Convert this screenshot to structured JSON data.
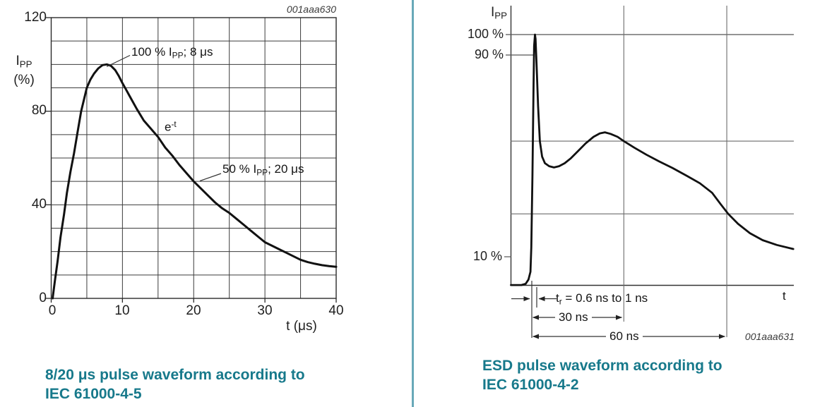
{
  "page": {
    "background": "#ffffff",
    "divider_color": "#68a8b8",
    "caption_color": "#17798b",
    "curve_color": "#111111"
  },
  "left": {
    "figure_id": "001aaa630",
    "caption_line1": "8/20 μs pulse waveform according to",
    "caption_line2": "IEC 61000-4-5",
    "axis": {
      "y_label_main": "I",
      "y_label_sub": "PP",
      "y_label_unit": "(%)",
      "x_label": "t (μs)",
      "y_ticks": [
        "120",
        "80",
        "40",
        "0"
      ],
      "x_ticks": [
        "0",
        "10",
        "20",
        "30",
        "40"
      ]
    },
    "annotations": {
      "peak_prefix": "100 % I",
      "peak_sub": "PP",
      "peak_suffix": "; 8 μs",
      "exp_base": "e",
      "exp_sup": "-t",
      "half_prefix": "50 % I",
      "half_sub": "PP",
      "half_suffix": "; 20 μs"
    }
  },
  "right": {
    "figure_id": "001aaa631",
    "caption_line1": "ESD pulse waveform according to",
    "caption_line2": "IEC 61000-4-2",
    "axis": {
      "y_label_main": "I",
      "y_label_sub": "PP",
      "x_label": "t",
      "y_ticks": [
        "100 %",
        "90 %",
        "10 %"
      ]
    },
    "annotations": {
      "tr_main": "t",
      "tr_sub": "r",
      "tr_rest": " = 0.6 ns to 1 ns",
      "dim30": "30 ns",
      "dim60": "60 ns"
    }
  },
  "chart_data": [
    {
      "type": "line",
      "title": "8/20 μs pulse waveform according to IEC 61000-4-5",
      "xlabel": "t (μs)",
      "ylabel": "IPP (%)",
      "xlim": [
        0,
        40
      ],
      "ylim": [
        0,
        120
      ],
      "x_tick_step": 10,
      "y_tick_step": 40,
      "grid_step_x": 5,
      "grid_step_y": 10,
      "grid": true,
      "key_points": {
        "peak_pct": 100,
        "peak_time_us": 8,
        "half_pct": 50,
        "half_time_us": 20
      },
      "points": [
        [
          0.2,
          0
        ],
        [
          0.5,
          7
        ],
        [
          0.9,
          16
        ],
        [
          1.3,
          26
        ],
        [
          1.8,
          36
        ],
        [
          2.2,
          45
        ],
        [
          2.7,
          54
        ],
        [
          3.2,
          62
        ],
        [
          3.7,
          71
        ],
        [
          4.2,
          80
        ],
        [
          4.6,
          85
        ],
        [
          5.0,
          90
        ],
        [
          5.5,
          93.5
        ],
        [
          6.0,
          96
        ],
        [
          6.6,
          98.3
        ],
        [
          7.2,
          99.7
        ],
        [
          7.8,
          100
        ],
        [
          8.4,
          99.4
        ],
        [
          9.0,
          97.5
        ],
        [
          9.5,
          95
        ],
        [
          10,
          92
        ],
        [
          10.5,
          89.3
        ],
        [
          11,
          86.5
        ],
        [
          12,
          81
        ],
        [
          13,
          76
        ],
        [
          14,
          72.5
        ],
        [
          15,
          69
        ],
        [
          16,
          64.5
        ],
        [
          17,
          61
        ],
        [
          18,
          57
        ],
        [
          19,
          53.5
        ],
        [
          20,
          50
        ],
        [
          21,
          47
        ],
        [
          22,
          44
        ],
        [
          23,
          41
        ],
        [
          24,
          38.5
        ],
        [
          25,
          36.5
        ],
        [
          26,
          34
        ],
        [
          27,
          31.5
        ],
        [
          28,
          29
        ],
        [
          29,
          26.5
        ],
        [
          30,
          24
        ],
        [
          31,
          22.5
        ],
        [
          32,
          21
        ],
        [
          33,
          19.5
        ],
        [
          34,
          18
        ],
        [
          35,
          16.5
        ],
        [
          36,
          15.5
        ],
        [
          37,
          14.8
        ],
        [
          38,
          14.2
        ],
        [
          39,
          13.8
        ],
        [
          40,
          13.5
        ]
      ]
    },
    {
      "type": "line",
      "title": "ESD pulse waveform according to IEC 61000-4-2",
      "xlabel": "t",
      "ylabel": "IPP",
      "y_ref_lines_pct": [
        100,
        90,
        10
      ],
      "h_gridlines_pct": [
        57.5,
        28.5
      ],
      "time_markers": {
        "rise_start_frac": 0.075,
        "rise_end_frac": 0.091,
        "t30_frac": 0.399,
        "t60_frac": 0.763
      },
      "rise_time_label": "tr = 0.6 ns to 1 ns",
      "points_frac_pct": [
        [
          0.0,
          0.1
        ],
        [
          0.037,
          0.1
        ],
        [
          0.052,
          0.6
        ],
        [
          0.062,
          2.3
        ],
        [
          0.069,
          5.4
        ],
        [
          0.072,
          15.2
        ],
        [
          0.076,
          43.4
        ],
        [
          0.08,
          80.0
        ],
        [
          0.082,
          95.5
        ],
        [
          0.085,
          100.0
        ],
        [
          0.087,
          98.3
        ],
        [
          0.091,
          87.0
        ],
        [
          0.096,
          71.5
        ],
        [
          0.102,
          57.5
        ],
        [
          0.11,
          51.3
        ],
        [
          0.12,
          48.7
        ],
        [
          0.135,
          47.5
        ],
        [
          0.152,
          47.0
        ],
        [
          0.17,
          47.5
        ],
        [
          0.19,
          48.7
        ],
        [
          0.212,
          50.7
        ],
        [
          0.237,
          53.5
        ],
        [
          0.264,
          56.6
        ],
        [
          0.292,
          59.2
        ],
        [
          0.314,
          60.6
        ],
        [
          0.332,
          61.0
        ],
        [
          0.352,
          60.4
        ],
        [
          0.377,
          59.2
        ],
        [
          0.399,
          57.5
        ],
        [
          0.436,
          54.9
        ],
        [
          0.479,
          52.1
        ],
        [
          0.524,
          49.4
        ],
        [
          0.571,
          46.8
        ],
        [
          0.621,
          43.7
        ],
        [
          0.668,
          40.7
        ],
        [
          0.711,
          36.9
        ],
        [
          0.741,
          32.4
        ],
        [
          0.768,
          28.5
        ],
        [
          0.803,
          24.5
        ],
        [
          0.845,
          20.8
        ],
        [
          0.89,
          18.0
        ],
        [
          0.94,
          16.1
        ],
        [
          0.998,
          14.5
        ]
      ]
    }
  ]
}
